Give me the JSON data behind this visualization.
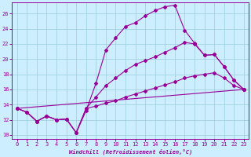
{
  "xlabel": "Windchill (Refroidissement éolien,°C)",
  "bg_color": "#cceeff",
  "line_color": "#990099",
  "grid_color": "#99ccdd",
  "xlim": [
    -0.5,
    23.5
  ],
  "ylim": [
    9.5,
    27.5
  ],
  "xticks": [
    0,
    1,
    2,
    3,
    4,
    5,
    6,
    7,
    8,
    9,
    10,
    11,
    12,
    13,
    14,
    15,
    16,
    17,
    18,
    19,
    20,
    21,
    22,
    23
  ],
  "yticks": [
    10,
    12,
    14,
    16,
    18,
    20,
    22,
    24,
    26
  ],
  "lines": [
    {
      "x": [
        0,
        1,
        2,
        3,
        4,
        5,
        6,
        7,
        8,
        9,
        10,
        11,
        12,
        13,
        14,
        15,
        16,
        17,
        18,
        19,
        20,
        21,
        22,
        23
      ],
      "y": [
        13.5,
        13.0,
        11.8,
        12.5,
        12.0,
        12.1,
        10.3,
        13.2,
        16.8,
        21.2,
        22.8,
        24.3,
        24.8,
        25.7,
        26.4,
        26.9,
        27.1,
        23.8,
        22.1,
        20.5,
        20.6,
        19.0,
        17.2,
        16.0
      ]
    },
    {
      "x": [
        0,
        1,
        2,
        3,
        4,
        5,
        6,
        7,
        8,
        9,
        10,
        11,
        12,
        13,
        14,
        15,
        16,
        17,
        18,
        19,
        20,
        21,
        22,
        23
      ],
      "y": [
        13.5,
        13.0,
        11.8,
        12.5,
        12.0,
        12.1,
        10.3,
        13.5,
        15.0,
        16.5,
        17.5,
        18.5,
        19.3,
        19.8,
        20.3,
        20.9,
        21.5,
        22.2,
        22.0,
        20.5,
        20.6,
        19.0,
        17.2,
        16.0
      ]
    },
    {
      "x": [
        0,
        1,
        2,
        3,
        4,
        5,
        6,
        7,
        8,
        9,
        10,
        11,
        12,
        13,
        14,
        15,
        16,
        17,
        18,
        19,
        20,
        21,
        22,
        23
      ],
      "y": [
        13.5,
        13.0,
        11.8,
        12.5,
        12.0,
        12.1,
        10.3,
        13.5,
        13.8,
        14.2,
        14.5,
        15.0,
        15.4,
        15.8,
        16.2,
        16.6,
        17.0,
        17.5,
        17.8,
        18.0,
        18.2,
        17.5,
        16.5,
        16.0
      ]
    },
    {
      "x": [
        0,
        23
      ],
      "y": [
        13.5,
        16.0
      ]
    }
  ]
}
